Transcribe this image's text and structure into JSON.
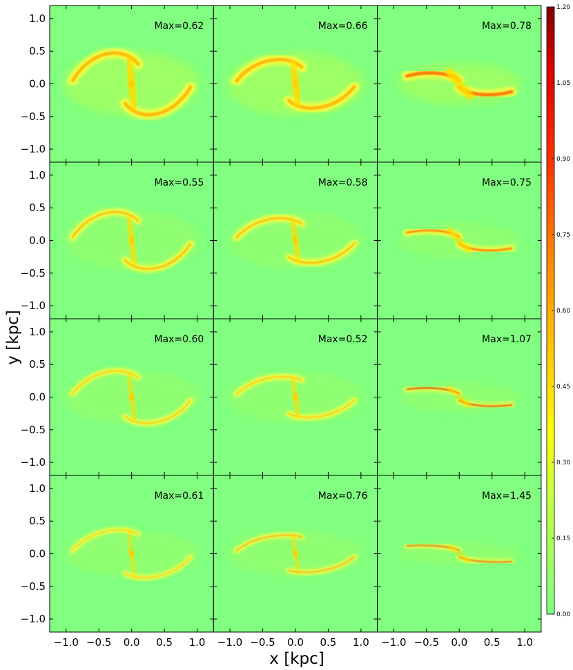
{
  "chart_data": {
    "type": "heatmap",
    "layout": {
      "rows": 4,
      "cols": 3
    },
    "xlabel": "x [kpc]",
    "ylabel": "y [kpc]",
    "xlim": [
      -1.25,
      1.25
    ],
    "ylim": [
      -1.2,
      1.2
    ],
    "x_ticks": [
      "−1.0",
      "−0.5",
      "0.0",
      "0.5",
      "1.0"
    ],
    "x_tick_values": [
      -1.0,
      -0.5,
      0.0,
      0.5,
      1.0
    ],
    "y_ticks": [
      "1.0",
      "0.5",
      "0.0",
      "−0.5",
      "−1.0"
    ],
    "y_tick_values": [
      1.0,
      0.5,
      0.0,
      -0.5,
      -1.0
    ],
    "colorbar": {
      "colormap": "jet-like (green to dark red)",
      "range": [
        0.0,
        1.2
      ],
      "ticks": [
        "0.00",
        "0.15",
        "0.30",
        "0.45",
        "0.60",
        "0.75",
        "0.90",
        "1.05",
        "1.20"
      ],
      "tick_values": [
        0.0,
        0.15,
        0.3,
        0.45,
        0.6,
        0.75,
        0.9,
        1.05,
        1.2
      ]
    },
    "panels": [
      {
        "row": 0,
        "col": 0,
        "max_label": "Max=0.62",
        "max": 0.62
      },
      {
        "row": 0,
        "col": 1,
        "max_label": "Max=0.66",
        "max": 0.66
      },
      {
        "row": 0,
        "col": 2,
        "max_label": "Max=0.78",
        "max": 0.78
      },
      {
        "row": 1,
        "col": 0,
        "max_label": "Max=0.55",
        "max": 0.55
      },
      {
        "row": 1,
        "col": 1,
        "max_label": "Max=0.58",
        "max": 0.58
      },
      {
        "row": 1,
        "col": 2,
        "max_label": "Max=0.75",
        "max": 0.75
      },
      {
        "row": 2,
        "col": 0,
        "max_label": "Max=0.60",
        "max": 0.6
      },
      {
        "row": 2,
        "col": 1,
        "max_label": "Max=0.52",
        "max": 0.52
      },
      {
        "row": 2,
        "col": 2,
        "max_label": "Max=1.07",
        "max": 1.07
      },
      {
        "row": 3,
        "col": 0,
        "max_label": "Max=0.61",
        "max": 0.61
      },
      {
        "row": 3,
        "col": 1,
        "max_label": "Max=0.76",
        "max": 0.76
      },
      {
        "row": 3,
        "col": 2,
        "max_label": "Max=1.45",
        "max": 1.45
      }
    ],
    "colors": {
      "background": "#80ff80",
      "low": "#80ff80",
      "mid": "#ffff00",
      "high": "#ff6a00",
      "peak": "#cc0000"
    }
  }
}
